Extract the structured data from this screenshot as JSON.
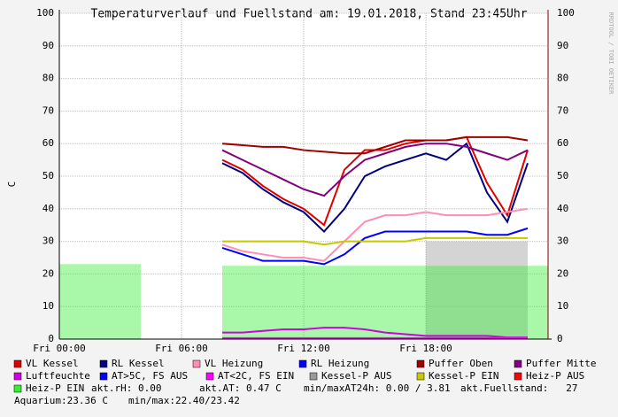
{
  "chart_data": {
    "type": "line",
    "title": "Temperaturverlauf und Fuellstand am: 19.01.2018, Stand 23:45Uhr",
    "y_label": "C",
    "watermark": "RRDTOOL / TOBI OETIKER",
    "x": [
      0,
      1,
      2,
      3,
      4,
      5,
      6,
      7,
      8,
      9,
      10,
      11,
      12,
      13,
      14,
      15,
      16,
      17,
      18,
      19,
      20,
      21,
      22,
      23,
      24
    ],
    "xlim": [
      0,
      24
    ],
    "xticks": [
      {
        "value": 0,
        "label": "Fri 00:00"
      },
      {
        "value": 6,
        "label": "Fri 06:00"
      },
      {
        "value": 12,
        "label": "Fri 12:00"
      },
      {
        "value": 18,
        "label": "Fri 18:00"
      }
    ],
    "ylim": [
      0,
      100
    ],
    "yticks": [
      0,
      10,
      20,
      30,
      40,
      50,
      60,
      70,
      80,
      90,
      100
    ],
    "grid": true,
    "series": [
      {
        "name": "VL Kessel",
        "color": "#e00000",
        "style": "line",
        "values": [
          null,
          null,
          null,
          null,
          null,
          null,
          null,
          null,
          55,
          52,
          47,
          43,
          40,
          35,
          52,
          58,
          58,
          60,
          61,
          61,
          62,
          48,
          38,
          58,
          null
        ]
      },
      {
        "name": "RL Kessel",
        "color": "#000080",
        "style": "line",
        "values": [
          null,
          null,
          null,
          null,
          null,
          null,
          null,
          null,
          54,
          51,
          46,
          42,
          39,
          33,
          40,
          50,
          53,
          55,
          57,
          55,
          60,
          45,
          36,
          54,
          null
        ]
      },
      {
        "name": "VL Heizung",
        "color": "#ff8eb0",
        "style": "line",
        "values": [
          null,
          null,
          null,
          null,
          null,
          null,
          null,
          null,
          29,
          27,
          26,
          25,
          25,
          24,
          30,
          36,
          38,
          38,
          39,
          38,
          38,
          38,
          39,
          40,
          null
        ]
      },
      {
        "name": "RL Heizung",
        "color": "#0000ff",
        "style": "line",
        "values": [
          null,
          null,
          null,
          null,
          null,
          null,
          null,
          null,
          28,
          26,
          24,
          24,
          24,
          23,
          26,
          31,
          33,
          33,
          33,
          33,
          33,
          32,
          32,
          34,
          null
        ]
      },
      {
        "name": "Puffer Oben",
        "color": "#a00000",
        "style": "line",
        "values": [
          null,
          null,
          null,
          null,
          null,
          null,
          null,
          null,
          60,
          59.5,
          59,
          59,
          58,
          57.5,
          57,
          57,
          59,
          61,
          61,
          61,
          62,
          62,
          62,
          61,
          null
        ]
      },
      {
        "name": "Puffer Mitte",
        "color": "#800080",
        "style": "line",
        "values": [
          null,
          null,
          null,
          null,
          null,
          null,
          null,
          null,
          58,
          55,
          52,
          49,
          46,
          44,
          50,
          55,
          57,
          59,
          60,
          60,
          59,
          57,
          55,
          58,
          null
        ]
      },
      {
        "name": "Luftfeuchte",
        "color": "#d000e0",
        "style": "line",
        "values": [
          null,
          null,
          null,
          null,
          null,
          null,
          null,
          null,
          2,
          2,
          2.5,
          3,
          3,
          3.5,
          3.5,
          3,
          2,
          1.5,
          1,
          1,
          1,
          1,
          0.5,
          0.5,
          null
        ]
      },
      {
        "name": "AT>5C, FS AUS",
        "color": "#0000ff"
      },
      {
        "name": "AT<2C, FS EIN",
        "color": "#ff00ff",
        "style": "line",
        "values": [
          null,
          null,
          null,
          null,
          null,
          null,
          null,
          null,
          0.3,
          0.3,
          0.3,
          0.3,
          0.3,
          0.3,
          0.3,
          0.3,
          0.3,
          0.3,
          0.3,
          0.3,
          0.3,
          0.3,
          0.3,
          0.3,
          null
        ]
      },
      {
        "name": "Kessel-P AUS",
        "color": "#999999",
        "style": "area",
        "values": [
          null,
          null,
          null,
          null,
          null,
          null,
          null,
          null,
          null,
          null,
          null,
          null,
          null,
          null,
          null,
          null,
          null,
          null,
          30,
          30,
          30,
          30,
          30,
          null,
          null
        ]
      },
      {
        "name": "Kessel-P EIN",
        "color": "#c8c800",
        "style": "line",
        "values": [
          null,
          null,
          null,
          null,
          null,
          null,
          null,
          null,
          30,
          30,
          30,
          30,
          30,
          29,
          30,
          30,
          30,
          30,
          31,
          31,
          31,
          31,
          31,
          31,
          null
        ]
      },
      {
        "name": "Heiz-P AUS",
        "color": "#ff0000"
      },
      {
        "name": "Heiz-P EIN",
        "color": "#33ee33",
        "style": "area",
        "values": [
          23,
          23,
          23,
          23,
          null,
          null,
          null,
          null,
          22.5,
          22.5,
          22.5,
          22.5,
          22.5,
          22.5,
          22.5,
          22.5,
          22.5,
          22.5,
          22.5,
          22.5,
          22.5,
          22.5,
          22.5,
          22.5,
          null
        ]
      }
    ],
    "annotations": [
      "akt.rH: 0.00",
      "akt.AT: 0.47 C",
      "min/maxAT24h: 0.00 / 3.81",
      "akt.Fuellstand:   27",
      "Aquarium:23.36 C",
      "min/max:22.40/23.42"
    ]
  }
}
